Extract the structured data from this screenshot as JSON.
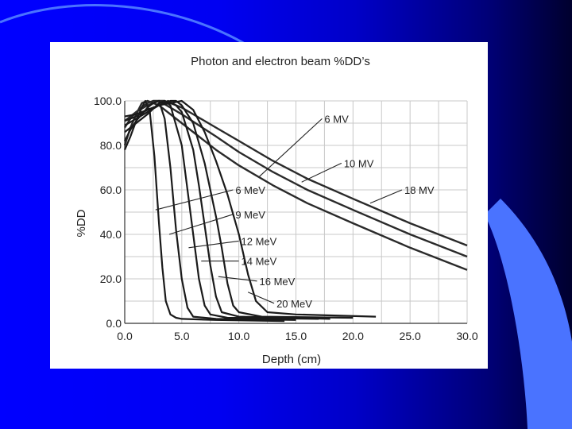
{
  "colors": {
    "slide_gradient": [
      "#0000ff",
      "#0000c8",
      "#00002e"
    ],
    "decor_arc": "#4a73ff",
    "panel": "#ffffff",
    "photon_curve": "#2a2a2a",
    "electron_curve": "#1a1a1a",
    "grid": "#c8c8c8"
  },
  "chart_data": {
    "type": "line",
    "title": "Photon and electron beam %DD’s",
    "xlabel": "Depth (cm)",
    "ylabel": "%DD",
    "xlim": [
      0,
      30
    ],
    "ylim": [
      0,
      100
    ],
    "xticks": [
      "0.0",
      "5.0",
      "10.0",
      "15.0",
      "20.0",
      "25.0",
      "30.0"
    ],
    "yticks": [
      "0.0",
      "20.0",
      "40.0",
      "60.0",
      "80.0",
      "100.0"
    ],
    "grid": true,
    "series": [
      {
        "name": "6 MV",
        "group": "photon",
        "x": [
          0,
          0.5,
          1,
          1.5,
          2,
          3,
          5,
          8,
          10,
          13,
          16,
          20,
          25,
          30
        ],
        "y": [
          80,
          88,
          94,
          99,
          100,
          98,
          90,
          78,
          71,
          62,
          54,
          45,
          34,
          24
        ]
      },
      {
        "name": "10 MV",
        "group": "photon",
        "x": [
          0,
          0.5,
          1,
          1.5,
          2,
          2.5,
          3,
          5,
          8,
          10,
          13,
          16,
          20,
          25,
          30
        ],
        "y": [
          88,
          92,
          95,
          97,
          99,
          100,
          100,
          94,
          84,
          77,
          68,
          60,
          51,
          40,
          30
        ]
      },
      {
        "name": "18 MV",
        "group": "photon",
        "x": [
          0,
          0.5,
          1,
          2,
          3,
          3.5,
          5,
          8,
          10,
          13,
          16,
          20,
          25,
          30
        ],
        "y": [
          91,
          93,
          95,
          98,
          100,
          100,
          97,
          88,
          82,
          73,
          65,
          56,
          45,
          35
        ]
      },
      {
        "name": "6 MeV",
        "group": "electron",
        "x": [
          0,
          0.5,
          1,
          1.5,
          1.8,
          2.2,
          2.6,
          3,
          3.3,
          3.6,
          4,
          4.5,
          5,
          8,
          14
        ],
        "y": [
          78,
          84,
          91,
          97,
          100,
          95,
          75,
          45,
          25,
          10,
          4,
          2.5,
          2,
          1.5,
          1
        ]
      },
      {
        "name": "9 MeV",
        "group": "electron",
        "x": [
          0,
          0.5,
          1,
          2,
          2.5,
          3,
          3.5,
          4,
          4.5,
          5,
          5.5,
          6,
          8,
          15
        ],
        "y": [
          82,
          87,
          91,
          97,
          99,
          100,
          92,
          70,
          42,
          20,
          7,
          3,
          2,
          1.5
        ]
      },
      {
        "name": "12 MeV",
        "group": "electron",
        "x": [
          0,
          1,
          2,
          3,
          3.5,
          4,
          5,
          5.5,
          6,
          6.5,
          7,
          7.5,
          9,
          17
        ],
        "y": [
          86,
          90,
          94,
          99,
          100,
          98,
          80,
          60,
          40,
          20,
          8,
          4,
          2.5,
          2
        ]
      },
      {
        "name": "14 MeV",
        "group": "electron",
        "x": [
          0,
          1,
          2,
          3,
          3.8,
          4.5,
          5,
          6,
          6.5,
          7,
          7.5,
          8,
          8.5,
          10,
          18
        ],
        "y": [
          89,
          92,
          95,
          98,
          100,
          98,
          95,
          78,
          62,
          44,
          26,
          12,
          5,
          3,
          2
        ]
      },
      {
        "name": "16 MeV",
        "group": "electron",
        "x": [
          0,
          1,
          2,
          3,
          4,
          4.5,
          5,
          6,
          7,
          8,
          8.5,
          9,
          9.5,
          10,
          12,
          20
        ],
        "y": [
          91,
          93,
          96,
          98,
          100,
          100,
          98,
          90,
          72,
          48,
          34,
          18,
          8,
          5,
          3,
          2.5
        ]
      },
      {
        "name": "20 MeV",
        "group": "electron",
        "x": [
          0,
          1,
          2,
          3,
          4,
          5,
          6,
          7,
          8,
          9,
          10,
          10.8,
          11.5,
          12.5,
          15,
          22
        ],
        "y": [
          93,
          94,
          96,
          98,
          99,
          100,
          96,
          86,
          73,
          58,
          40,
          22,
          10,
          5,
          4,
          3
        ]
      }
    ],
    "annotations": [
      {
        "text": "6 MV",
        "series": "6 MV"
      },
      {
        "text": "10 MV",
        "series": "10 MV"
      },
      {
        "text": "18 MV",
        "series": "18 MV"
      },
      {
        "text": "6 MeV",
        "series": "6 MeV"
      },
      {
        "text": "9 MeV",
        "series": "9 MeV"
      },
      {
        "text": "12 MeV",
        "series": "12 MeV"
      },
      {
        "text": "14 MeV",
        "series": "14 MeV"
      },
      {
        "text": "16 MeV",
        "series": "16 MeV"
      },
      {
        "text": "20 MeV",
        "series": "20 MeV"
      }
    ]
  }
}
